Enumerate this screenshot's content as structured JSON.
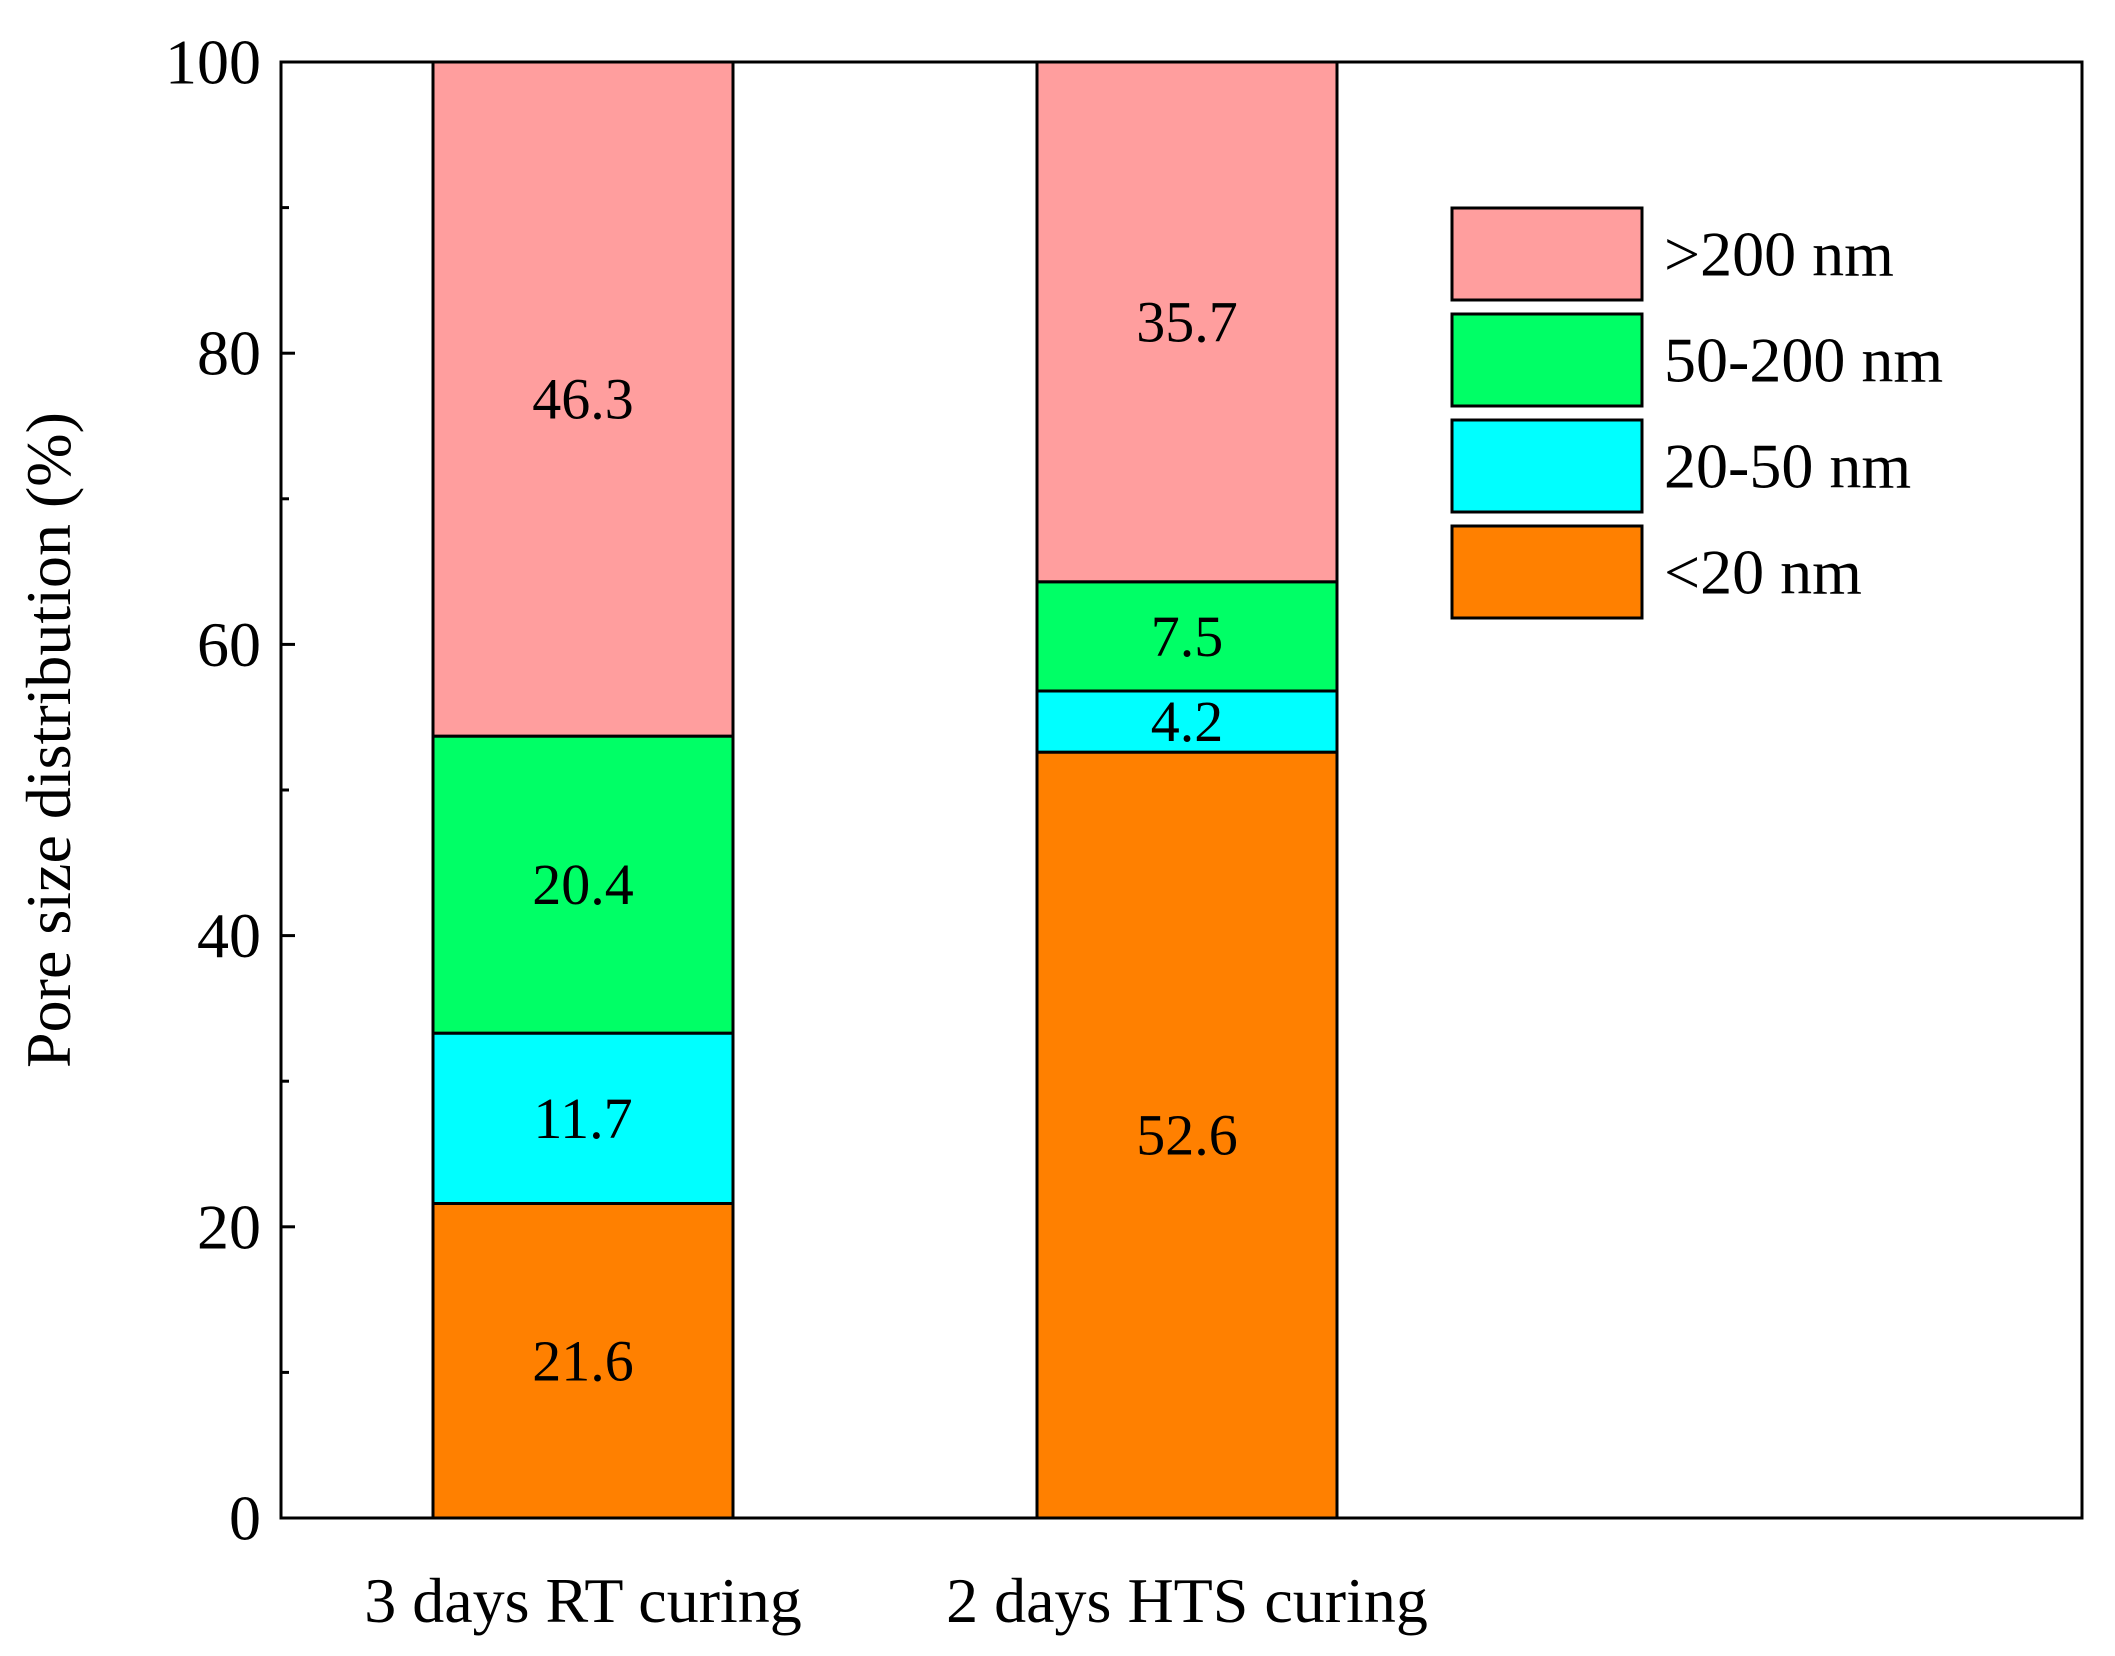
{
  "chart_data": {
    "type": "bar",
    "stacked": true,
    "title": "",
    "xlabel": "",
    "ylabel": "Pore size distribution (%)",
    "ylim": [
      0,
      100
    ],
    "yticks": [
      0,
      20,
      40,
      60,
      80,
      100
    ],
    "yminor_step": 10,
    "categories": [
      "3 days RT curing",
      "2 days HTS curing"
    ],
    "series": [
      {
        "name": "<20 nm",
        "color": "#ff8000",
        "values": [
          21.6,
          52.6
        ],
        "labels": [
          "21.6",
          "52.6"
        ]
      },
      {
        "name": "20-50 nm",
        "color": "#00ffff",
        "values": [
          11.7,
          4.2
        ],
        "labels": [
          "11.7",
          "4.2"
        ]
      },
      {
        "name": "50-200 nm",
        "color": "#00ff66",
        "values": [
          20.4,
          7.5
        ],
        "labels": [
          "20.4",
          "7.5"
        ]
      },
      {
        "name": ">200 nm",
        "color": "#ff9e9e",
        "values": [
          46.3,
          35.7
        ],
        "labels": [
          "46.3",
          "35.7"
        ]
      }
    ],
    "legend": {
      "position": "top-right",
      "order": [
        ">200 nm",
        "50-200 nm",
        "20-50 nm",
        "<20 nm"
      ]
    }
  }
}
